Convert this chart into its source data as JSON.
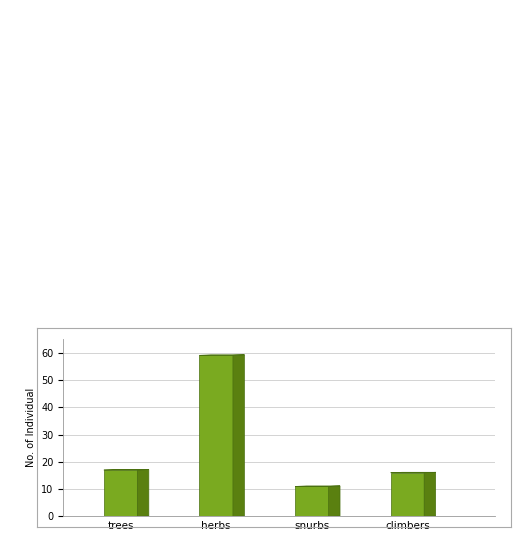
{
  "categories": [
    "trees",
    "herbs",
    "snurbs",
    "climbers"
  ],
  "values": [
    17,
    59,
    11,
    16
  ],
  "bar_color_top": "#8db830",
  "bar_color_front": "#7aaa20",
  "bar_color_side": "#5a8010",
  "ylabel": "No. of Individual",
  "ylim": [
    0,
    65
  ],
  "yticks": [
    0,
    10,
    20,
    30,
    40,
    50,
    60
  ],
  "background_color": "#ffffff",
  "grid_color": "#cccccc",
  "figsize": [
    5.27,
    5.38
  ],
  "dpi": 100,
  "table_bg": "#ffffff",
  "chart_box_color": "#cccccc"
}
